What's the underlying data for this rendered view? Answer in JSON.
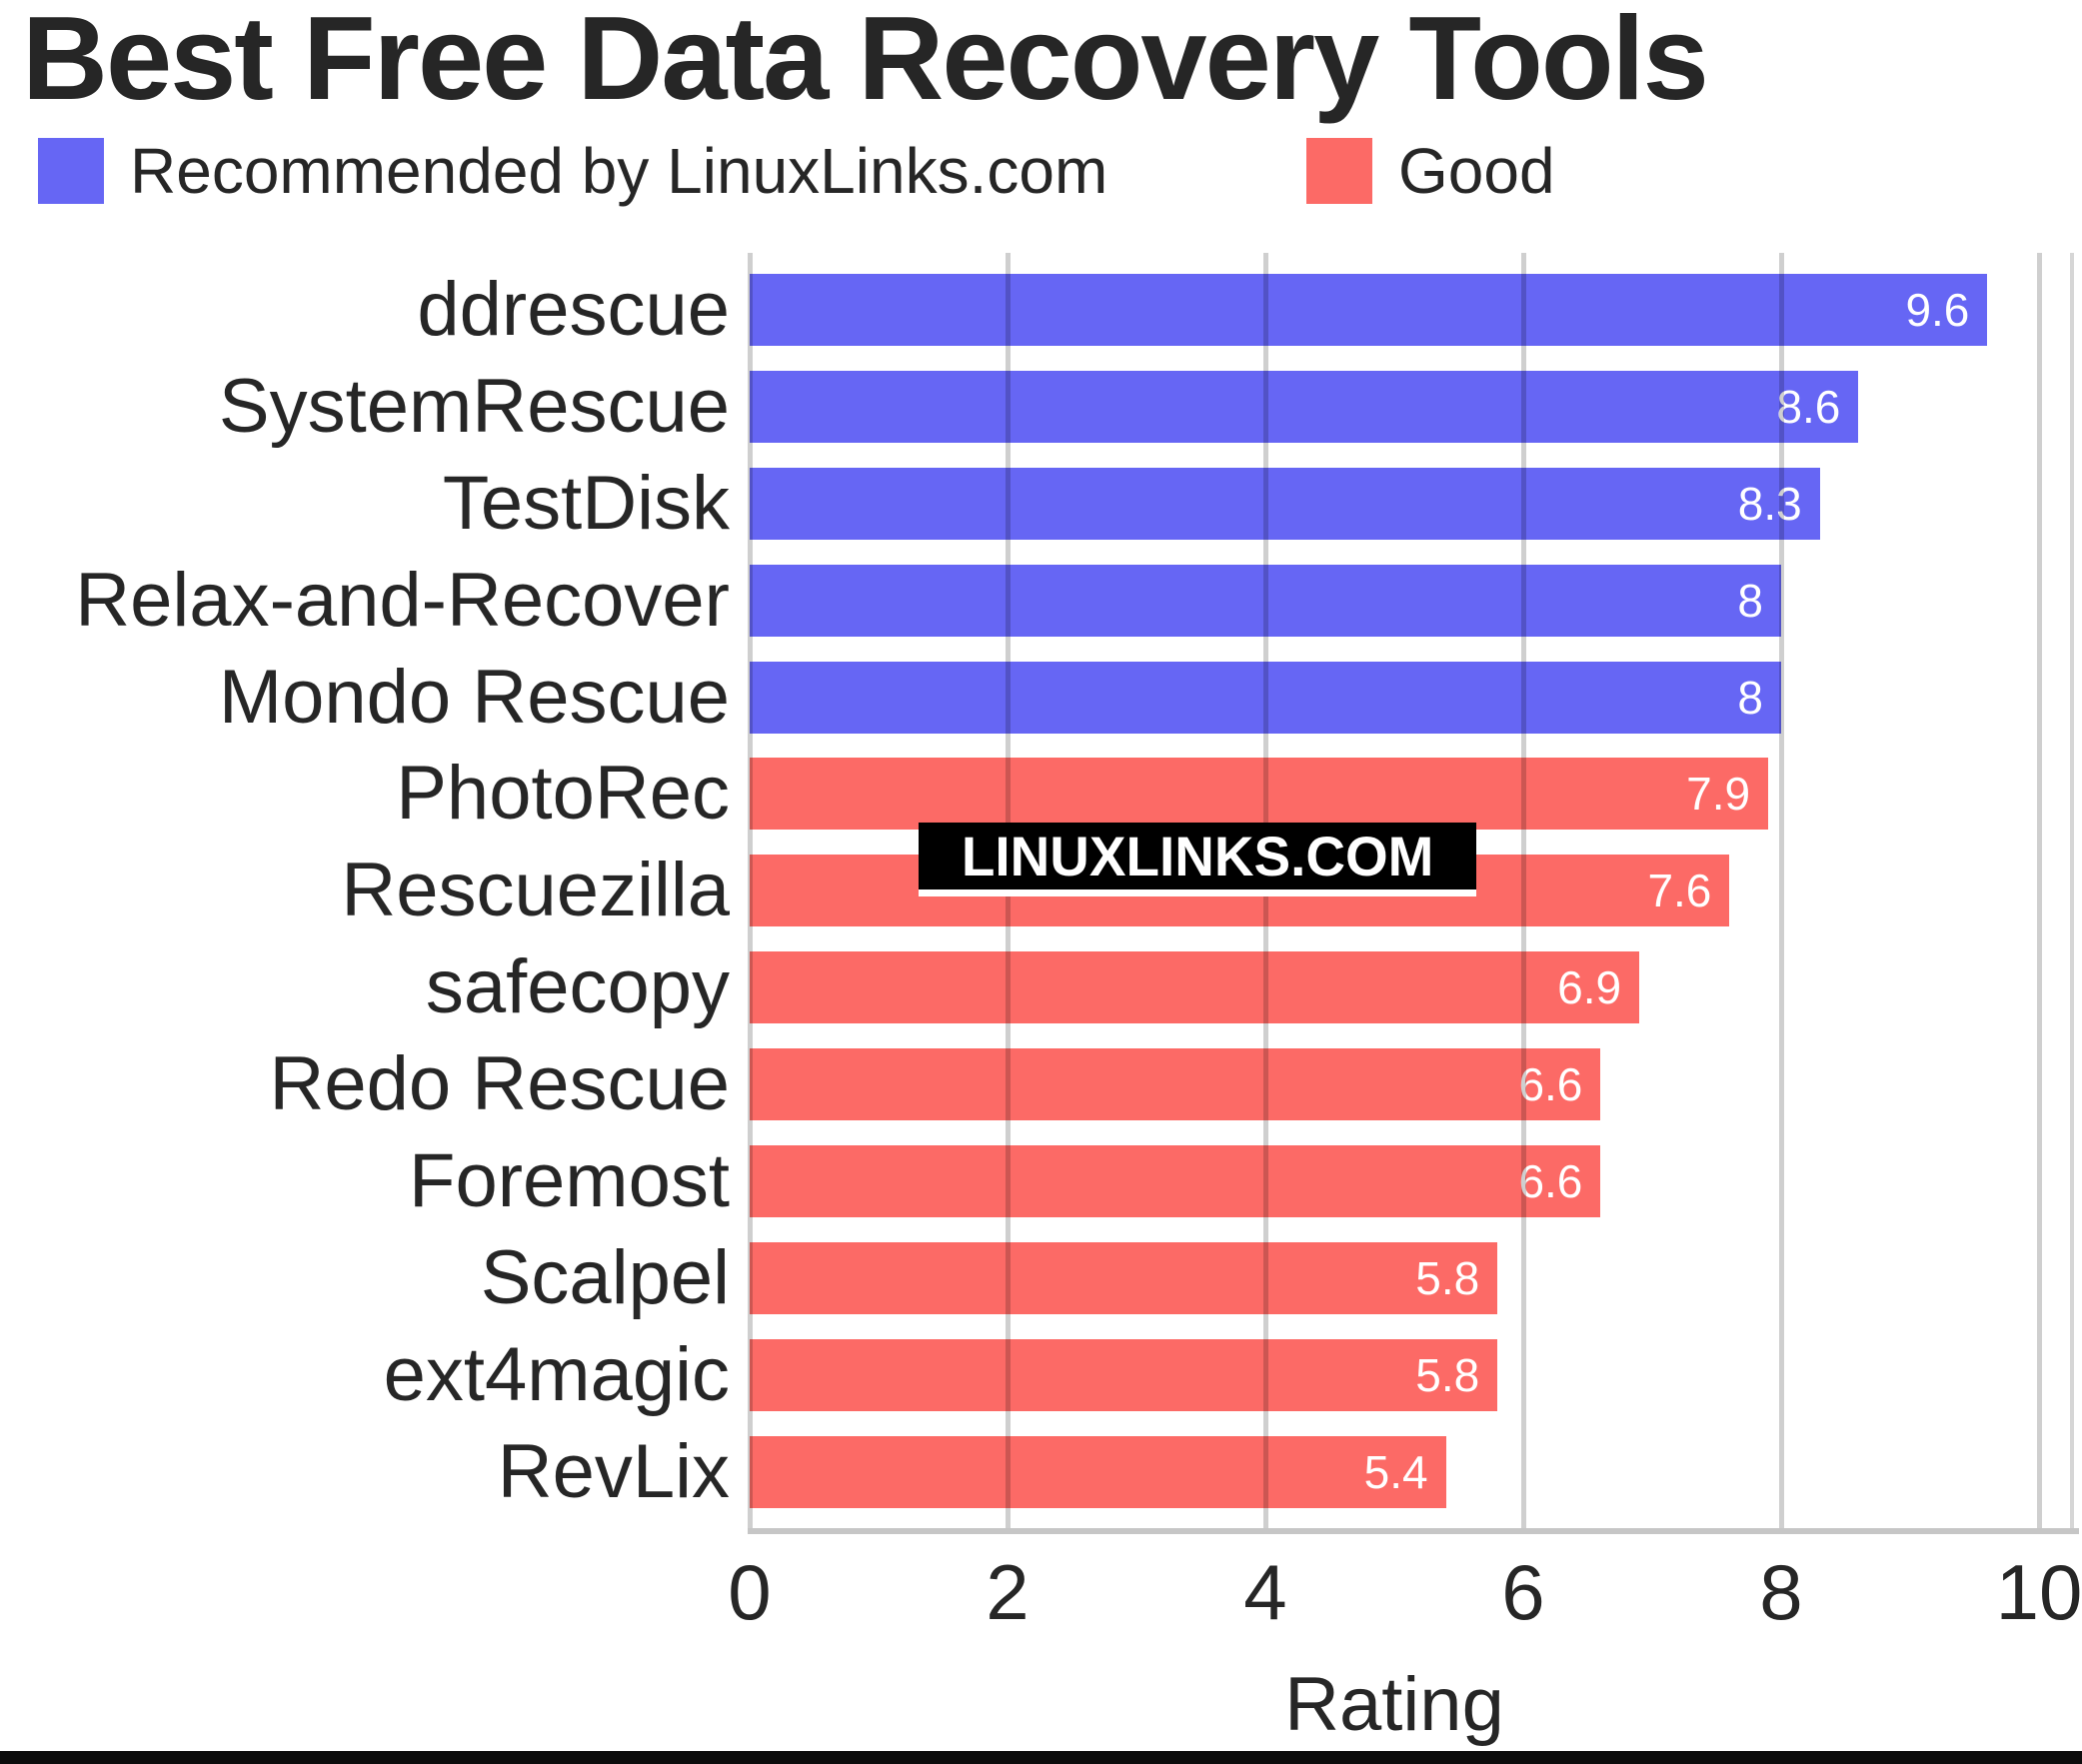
{
  "title": "Best Free Data Recovery Tools",
  "legend": {
    "items": [
      {
        "label": "Recommended by LinuxLinks.com",
        "color": "#6666F4"
      },
      {
        "label": "Good",
        "color": "#FC6A66"
      }
    ]
  },
  "watermark": {
    "text": "LINUXLINKS.COM"
  },
  "chart_data": {
    "type": "bar",
    "orientation": "horizontal",
    "title": "Best Free Data Recovery Tools",
    "xlabel": "Rating",
    "xlim": [
      0,
      10
    ],
    "xticks": [
      0,
      2,
      4,
      6,
      8,
      10
    ],
    "grid": true,
    "legend_position": "top",
    "categories": [
      "ddrescue",
      "SystemRescue",
      "TestDisk",
      "Relax-and-Recover",
      "Mondo Rescue",
      "PhotoRec",
      "Rescuezilla",
      "safecopy",
      "Redo Rescue",
      "Foremost",
      "Scalpel",
      "ext4magic",
      "RevLix"
    ],
    "values": [
      9.6,
      8.6,
      8.3,
      8,
      8,
      7.9,
      7.6,
      6.9,
      6.6,
      6.6,
      5.8,
      5.8,
      5.4
    ],
    "value_labels": [
      "9.6",
      "8.6",
      "8.3",
      "8",
      "8",
      "7.9",
      "7.6",
      "6.9",
      "6.6",
      "6.6",
      "5.8",
      "5.8",
      "5.4"
    ],
    "bar_groups": [
      "Recommended by LinuxLinks.com",
      "Recommended by LinuxLinks.com",
      "Recommended by LinuxLinks.com",
      "Recommended by LinuxLinks.com",
      "Recommended by LinuxLinks.com",
      "Good",
      "Good",
      "Good",
      "Good",
      "Good",
      "Good",
      "Good",
      "Good"
    ],
    "series": [
      {
        "name": "Recommended by LinuxLinks.com",
        "color": "#6666F4",
        "categories": [
          "ddrescue",
          "SystemRescue",
          "TestDisk",
          "Relax-and-Recover",
          "Mondo Rescue"
        ],
        "values": [
          9.6,
          8.6,
          8.3,
          8,
          8
        ]
      },
      {
        "name": "Good",
        "color": "#FC6A66",
        "categories": [
          "PhotoRec",
          "Rescuezilla",
          "safecopy",
          "Redo Rescue",
          "Foremost",
          "Scalpel",
          "ext4magic",
          "RevLix"
        ],
        "values": [
          7.9,
          7.6,
          6.9,
          6.6,
          6.6,
          5.8,
          5.8,
          5.4
        ]
      }
    ]
  }
}
